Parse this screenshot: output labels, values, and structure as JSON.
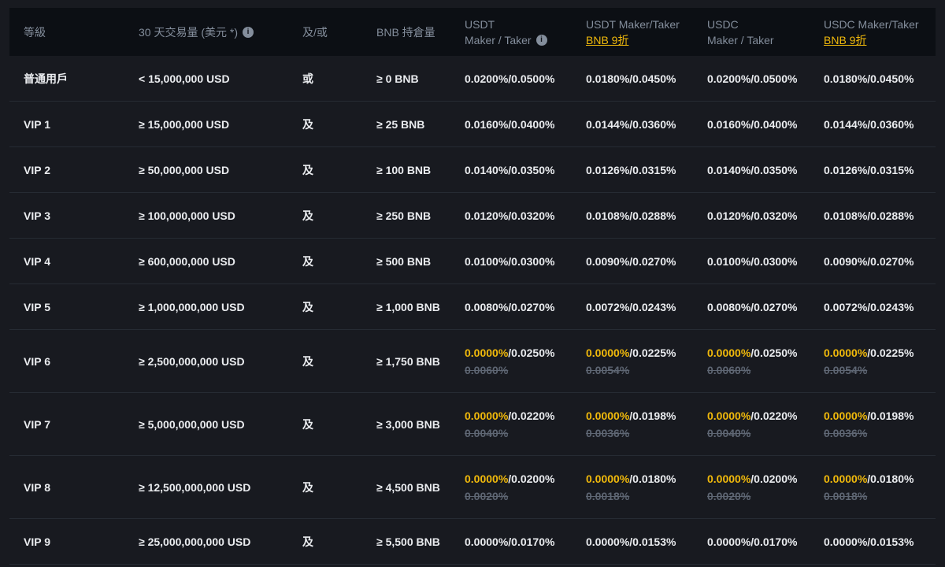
{
  "theme": {
    "page_bg": "#181A20",
    "header_bg": "#0C0F14",
    "row_divider": "#262B33",
    "text_primary": "#EAECEF",
    "text_secondary": "#848E9C",
    "accent_yellow": "#F0B90B",
    "strike_gray": "#5E6673"
  },
  "icons": {
    "info_glyph": "i"
  },
  "table": {
    "headers": {
      "level": "等級",
      "volume": "30 天交易量 (美元 *)",
      "and_or": "及/或",
      "bnb_balance": "BNB 持倉量",
      "usdt_line1": "USDT",
      "usdt_line2": "Maker / Taker",
      "usdt_bnb_line1": "USDT Maker/Taker",
      "usdt_bnb_line2": "BNB 9折",
      "usdc_line1": "USDC",
      "usdc_line2": "Maker / Taker",
      "usdc_bnb_line1": "USDC Maker/Taker",
      "usdc_bnb_line2": "BNB 9折"
    },
    "rows": [
      {
        "level": "普通用戶",
        "volume": "< 15,000,000 USD",
        "and_or": "或",
        "bnb": "≥ 0 BNB",
        "fees": [
          {
            "hl": "",
            "txt": "0.0200%/0.0500%",
            "strike": ""
          },
          {
            "hl": "",
            "txt": "0.0180%/0.0450%",
            "strike": ""
          },
          {
            "hl": "",
            "txt": "0.0200%/0.0500%",
            "strike": ""
          },
          {
            "hl": "",
            "txt": "0.0180%/0.0450%",
            "strike": ""
          }
        ]
      },
      {
        "level": "VIP 1",
        "volume": "≥ 15,000,000 USD",
        "and_or": "及",
        "bnb": "≥ 25 BNB",
        "fees": [
          {
            "hl": "",
            "txt": "0.0160%/0.0400%",
            "strike": ""
          },
          {
            "hl": "",
            "txt": "0.0144%/0.0360%",
            "strike": ""
          },
          {
            "hl": "",
            "txt": "0.0160%/0.0400%",
            "strike": ""
          },
          {
            "hl": "",
            "txt": "0.0144%/0.0360%",
            "strike": ""
          }
        ]
      },
      {
        "level": "VIP 2",
        "volume": "≥ 50,000,000 USD",
        "and_or": "及",
        "bnb": "≥ 100 BNB",
        "fees": [
          {
            "hl": "",
            "txt": "0.0140%/0.0350%",
            "strike": ""
          },
          {
            "hl": "",
            "txt": "0.0126%/0.0315%",
            "strike": ""
          },
          {
            "hl": "",
            "txt": "0.0140%/0.0350%",
            "strike": ""
          },
          {
            "hl": "",
            "txt": "0.0126%/0.0315%",
            "strike": ""
          }
        ]
      },
      {
        "level": "VIP 3",
        "volume": "≥ 100,000,000 USD",
        "and_or": "及",
        "bnb": "≥ 250 BNB",
        "fees": [
          {
            "hl": "",
            "txt": "0.0120%/0.0320%",
            "strike": ""
          },
          {
            "hl": "",
            "txt": "0.0108%/0.0288%",
            "strike": ""
          },
          {
            "hl": "",
            "txt": "0.0120%/0.0320%",
            "strike": ""
          },
          {
            "hl": "",
            "txt": "0.0108%/0.0288%",
            "strike": ""
          }
        ]
      },
      {
        "level": "VIP 4",
        "volume": "≥ 600,000,000 USD",
        "and_or": "及",
        "bnb": "≥ 500 BNB",
        "fees": [
          {
            "hl": "",
            "txt": "0.0100%/0.0300%",
            "strike": ""
          },
          {
            "hl": "",
            "txt": "0.0090%/0.0270%",
            "strike": ""
          },
          {
            "hl": "",
            "txt": "0.0100%/0.0300%",
            "strike": ""
          },
          {
            "hl": "",
            "txt": "0.0090%/0.0270%",
            "strike": ""
          }
        ]
      },
      {
        "level": "VIP 5",
        "volume": "≥ 1,000,000,000 USD",
        "and_or": "及",
        "bnb": "≥ 1,000 BNB",
        "fees": [
          {
            "hl": "",
            "txt": "0.0080%/0.0270%",
            "strike": ""
          },
          {
            "hl": "",
            "txt": "0.0072%/0.0243%",
            "strike": ""
          },
          {
            "hl": "",
            "txt": "0.0080%/0.0270%",
            "strike": ""
          },
          {
            "hl": "",
            "txt": "0.0072%/0.0243%",
            "strike": ""
          }
        ]
      },
      {
        "level": "VIP 6",
        "volume": "≥ 2,500,000,000 USD",
        "and_or": "及",
        "bnb": "≥ 1,750 BNB",
        "fees": [
          {
            "hl": "0.0000%",
            "txt": "/0.0250%",
            "strike": "0.0060%"
          },
          {
            "hl": "0.0000%",
            "txt": "/0.0225%",
            "strike": "0.0054%"
          },
          {
            "hl": "0.0000%",
            "txt": "/0.0250%",
            "strike": "0.0060%"
          },
          {
            "hl": "0.0000%",
            "txt": "/0.0225%",
            "strike": "0.0054%"
          }
        ]
      },
      {
        "level": "VIP 7",
        "volume": "≥ 5,000,000,000 USD",
        "and_or": "及",
        "bnb": "≥ 3,000 BNB",
        "fees": [
          {
            "hl": "0.0000%",
            "txt": "/0.0220%",
            "strike": "0.0040%"
          },
          {
            "hl": "0.0000%",
            "txt": "/0.0198%",
            "strike": "0.0036%"
          },
          {
            "hl": "0.0000%",
            "txt": "/0.0220%",
            "strike": "0.0040%"
          },
          {
            "hl": "0.0000%",
            "txt": "/0.0198%",
            "strike": "0.0036%"
          }
        ]
      },
      {
        "level": "VIP 8",
        "volume": "≥ 12,500,000,000 USD",
        "and_or": "及",
        "bnb": "≥ 4,500 BNB",
        "fees": [
          {
            "hl": "0.0000%",
            "txt": "/0.0200%",
            "strike": "0.0020%"
          },
          {
            "hl": "0.0000%",
            "txt": "/0.0180%",
            "strike": "0.0018%"
          },
          {
            "hl": "0.0000%",
            "txt": "/0.0200%",
            "strike": "0.0020%"
          },
          {
            "hl": "0.0000%",
            "txt": "/0.0180%",
            "strike": "0.0018%"
          }
        ]
      },
      {
        "level": "VIP 9",
        "volume": "≥ 25,000,000,000 USD",
        "and_or": "及",
        "bnb": "≥ 5,500 BNB",
        "fees": [
          {
            "hl": "",
            "txt": "0.0000%/0.0170%",
            "strike": ""
          },
          {
            "hl": "",
            "txt": "0.0000%/0.0153%",
            "strike": ""
          },
          {
            "hl": "",
            "txt": "0.0000%/0.0170%",
            "strike": ""
          },
          {
            "hl": "",
            "txt": "0.0000%/0.0153%",
            "strike": ""
          }
        ]
      }
    ]
  }
}
